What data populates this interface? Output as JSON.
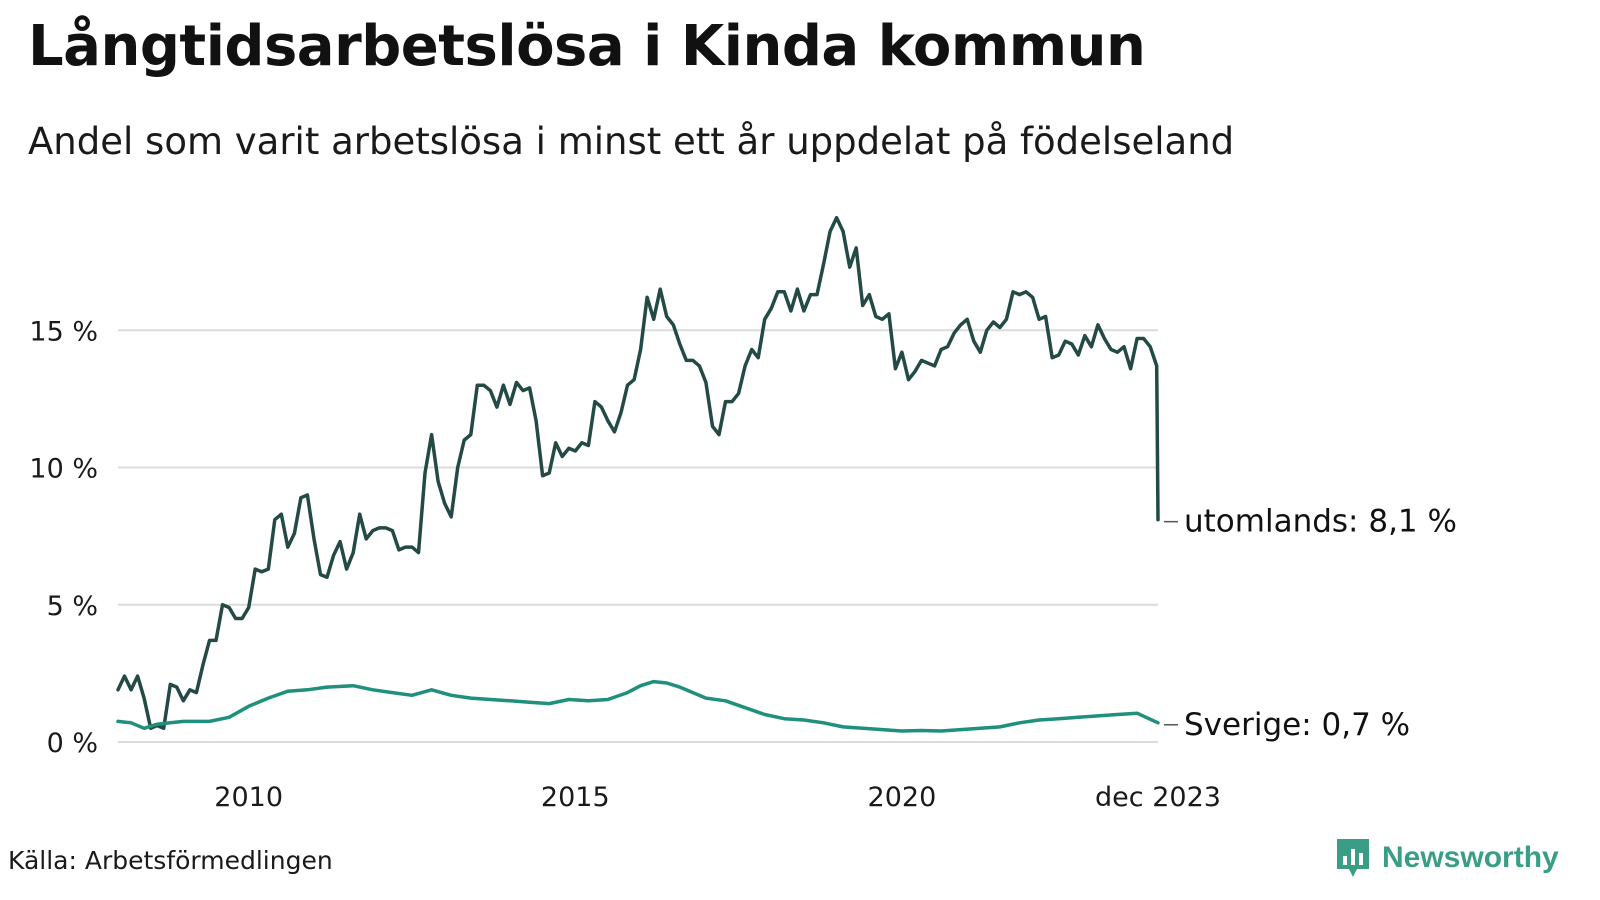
{
  "title": "Långtidsarbetslösa i Kinda kommun",
  "subtitle": "Andel som varit arbetslösa i minst ett år uppdelat på födelseland",
  "source": "Källa: Arbetsförmedlingen",
  "brand": {
    "name": "Newsworthy",
    "icon": "bar-chart-bubble-icon",
    "color": "#3a9e87"
  },
  "chart_data": {
    "type": "line",
    "title": "Långtidsarbetslösa i Kinda kommun",
    "xlabel": "",
    "ylabel": "",
    "x_range": [
      2008.0,
      2023.92
    ],
    "ylim": [
      0,
      19
    ],
    "y_ticks": [
      0,
      5,
      10,
      15
    ],
    "y_tick_labels": [
      "0 %",
      "5 %",
      "10 %",
      "15 %"
    ],
    "x_ticks": [
      2010,
      2015,
      2020,
      2023.92
    ],
    "x_tick_labels": [
      "2010",
      "2015",
      "2020",
      "dec 2023"
    ],
    "grid": true,
    "series": [
      {
        "name": "utomlands",
        "end_label": "utomlands: 8,1 %",
        "color": "#234a44",
        "points": [
          [
            2008.0,
            1.9
          ],
          [
            2008.1,
            2.4
          ],
          [
            2008.2,
            1.9
          ],
          [
            2008.3,
            2.4
          ],
          [
            2008.4,
            1.6
          ],
          [
            2008.5,
            0.5
          ],
          [
            2008.6,
            0.6
          ],
          [
            2008.7,
            0.5
          ],
          [
            2008.8,
            2.1
          ],
          [
            2008.9,
            2.0
          ],
          [
            2009.0,
            1.5
          ],
          [
            2009.1,
            1.9
          ],
          [
            2009.2,
            1.8
          ],
          [
            2009.3,
            2.8
          ],
          [
            2009.4,
            3.7
          ],
          [
            2009.5,
            3.7
          ],
          [
            2009.6,
            5.0
          ],
          [
            2009.7,
            4.9
          ],
          [
            2009.8,
            4.5
          ],
          [
            2009.9,
            4.5
          ],
          [
            2010.0,
            4.9
          ],
          [
            2010.1,
            6.3
          ],
          [
            2010.2,
            6.2
          ],
          [
            2010.3,
            6.3
          ],
          [
            2010.4,
            8.1
          ],
          [
            2010.5,
            8.3
          ],
          [
            2010.6,
            7.1
          ],
          [
            2010.7,
            7.6
          ],
          [
            2010.8,
            8.9
          ],
          [
            2010.9,
            9.0
          ],
          [
            2011.0,
            7.4
          ],
          [
            2011.1,
            6.1
          ],
          [
            2011.2,
            6.0
          ],
          [
            2011.3,
            6.8
          ],
          [
            2011.4,
            7.3
          ],
          [
            2011.5,
            6.3
          ],
          [
            2011.6,
            6.9
          ],
          [
            2011.7,
            8.3
          ],
          [
            2011.8,
            7.4
          ],
          [
            2011.9,
            7.7
          ],
          [
            2012.0,
            7.8
          ],
          [
            2012.1,
            7.8
          ],
          [
            2012.2,
            7.7
          ],
          [
            2012.3,
            7.0
          ],
          [
            2012.4,
            7.1
          ],
          [
            2012.5,
            7.1
          ],
          [
            2012.6,
            6.9
          ],
          [
            2012.7,
            9.8
          ],
          [
            2012.8,
            11.2
          ],
          [
            2012.9,
            9.5
          ],
          [
            2013.0,
            8.7
          ],
          [
            2013.1,
            8.2
          ],
          [
            2013.2,
            10.0
          ],
          [
            2013.3,
            11.0
          ],
          [
            2013.4,
            11.2
          ],
          [
            2013.5,
            13.0
          ],
          [
            2013.6,
            13.0
          ],
          [
            2013.7,
            12.8
          ],
          [
            2013.8,
            12.2
          ],
          [
            2013.9,
            13.0
          ],
          [
            2014.0,
            12.3
          ],
          [
            2014.1,
            13.1
          ],
          [
            2014.2,
            12.8
          ],
          [
            2014.3,
            12.9
          ],
          [
            2014.4,
            11.7
          ],
          [
            2014.5,
            9.7
          ],
          [
            2014.6,
            9.8
          ],
          [
            2014.7,
            10.9
          ],
          [
            2014.8,
            10.4
          ],
          [
            2014.9,
            10.7
          ],
          [
            2015.0,
            10.6
          ],
          [
            2015.1,
            10.9
          ],
          [
            2015.2,
            10.8
          ],
          [
            2015.3,
            12.4
          ],
          [
            2015.4,
            12.2
          ],
          [
            2015.5,
            11.7
          ],
          [
            2015.6,
            11.3
          ],
          [
            2015.7,
            12.0
          ],
          [
            2015.8,
            13.0
          ],
          [
            2015.9,
            13.2
          ],
          [
            2016.0,
            14.3
          ],
          [
            2016.1,
            16.2
          ],
          [
            2016.2,
            15.4
          ],
          [
            2016.3,
            16.5
          ],
          [
            2016.4,
            15.5
          ],
          [
            2016.5,
            15.2
          ],
          [
            2016.6,
            14.5
          ],
          [
            2016.7,
            13.9
          ],
          [
            2016.8,
            13.9
          ],
          [
            2016.9,
            13.7
          ],
          [
            2017.0,
            13.1
          ],
          [
            2017.1,
            11.5
          ],
          [
            2017.2,
            11.2
          ],
          [
            2017.3,
            12.4
          ],
          [
            2017.4,
            12.4
          ],
          [
            2017.5,
            12.7
          ],
          [
            2017.6,
            13.7
          ],
          [
            2017.7,
            14.3
          ],
          [
            2017.8,
            14.0
          ],
          [
            2017.9,
            15.4
          ],
          [
            2018.0,
            15.8
          ],
          [
            2018.1,
            16.4
          ],
          [
            2018.2,
            16.4
          ],
          [
            2018.3,
            15.7
          ],
          [
            2018.4,
            16.5
          ],
          [
            2018.5,
            15.7
          ],
          [
            2018.6,
            16.3
          ],
          [
            2018.7,
            16.3
          ],
          [
            2018.8,
            17.4
          ],
          [
            2018.9,
            18.6
          ],
          [
            2019.0,
            19.1
          ],
          [
            2019.1,
            18.6
          ],
          [
            2019.2,
            17.3
          ],
          [
            2019.3,
            18.0
          ],
          [
            2019.4,
            15.9
          ],
          [
            2019.5,
            16.3
          ],
          [
            2019.6,
            15.5
          ],
          [
            2019.7,
            15.4
          ],
          [
            2019.8,
            15.6
          ],
          [
            2019.9,
            13.6
          ],
          [
            2020.0,
            14.2
          ],
          [
            2020.1,
            13.2
          ],
          [
            2020.2,
            13.5
          ],
          [
            2020.3,
            13.9
          ],
          [
            2020.4,
            13.8
          ],
          [
            2020.5,
            13.7
          ],
          [
            2020.6,
            14.3
          ],
          [
            2020.7,
            14.4
          ],
          [
            2020.8,
            14.9
          ],
          [
            2020.9,
            15.2
          ],
          [
            2021.0,
            15.4
          ],
          [
            2021.1,
            14.6
          ],
          [
            2021.2,
            14.2
          ],
          [
            2021.3,
            15.0
          ],
          [
            2021.4,
            15.3
          ],
          [
            2021.5,
            15.1
          ],
          [
            2021.6,
            15.4
          ],
          [
            2021.7,
            16.4
          ],
          [
            2021.8,
            16.3
          ],
          [
            2021.9,
            16.4
          ],
          [
            2022.0,
            16.2
          ],
          [
            2022.1,
            15.4
          ],
          [
            2022.2,
            15.5
          ],
          [
            2022.3,
            14.0
          ],
          [
            2022.4,
            14.1
          ],
          [
            2022.5,
            14.6
          ],
          [
            2022.6,
            14.5
          ],
          [
            2022.7,
            14.1
          ],
          [
            2022.8,
            14.8
          ],
          [
            2022.9,
            14.4
          ],
          [
            2023.0,
            15.2
          ],
          [
            2023.1,
            14.7
          ],
          [
            2023.2,
            14.3
          ],
          [
            2023.3,
            14.2
          ],
          [
            2023.4,
            14.4
          ],
          [
            2023.5,
            13.6
          ],
          [
            2023.6,
            14.7
          ],
          [
            2023.7,
            14.7
          ],
          [
            2023.8,
            14.4
          ],
          [
            2023.9,
            13.7
          ],
          [
            2023.92,
            8.1
          ]
        ]
      },
      {
        "name": "Sverige",
        "end_label": "Sverige: 0,7 %",
        "color": "#1f8f7e",
        "points": [
          [
            2008.0,
            0.75
          ],
          [
            2008.2,
            0.7
          ],
          [
            2008.4,
            0.5
          ],
          [
            2008.6,
            0.65
          ],
          [
            2008.8,
            0.7
          ],
          [
            2009.0,
            0.75
          ],
          [
            2009.4,
            0.75
          ],
          [
            2009.7,
            0.9
          ],
          [
            2010.0,
            1.3
          ],
          [
            2010.3,
            1.6
          ],
          [
            2010.6,
            1.85
          ],
          [
            2010.9,
            1.9
          ],
          [
            2011.2,
            2.0
          ],
          [
            2011.6,
            2.05
          ],
          [
            2011.9,
            1.9
          ],
          [
            2012.2,
            1.8
          ],
          [
            2012.5,
            1.7
          ],
          [
            2012.8,
            1.9
          ],
          [
            2013.1,
            1.7
          ],
          [
            2013.4,
            1.6
          ],
          [
            2013.7,
            1.55
          ],
          [
            2014.0,
            1.5
          ],
          [
            2014.3,
            1.45
          ],
          [
            2014.6,
            1.4
          ],
          [
            2014.9,
            1.55
          ],
          [
            2015.2,
            1.5
          ],
          [
            2015.5,
            1.55
          ],
          [
            2015.8,
            1.8
          ],
          [
            2016.0,
            2.05
          ],
          [
            2016.2,
            2.2
          ],
          [
            2016.4,
            2.15
          ],
          [
            2016.6,
            2.0
          ],
          [
            2016.8,
            1.8
          ],
          [
            2017.0,
            1.6
          ],
          [
            2017.3,
            1.5
          ],
          [
            2017.6,
            1.25
          ],
          [
            2017.9,
            1.0
          ],
          [
            2018.2,
            0.85
          ],
          [
            2018.5,
            0.8
          ],
          [
            2018.8,
            0.7
          ],
          [
            2019.1,
            0.55
          ],
          [
            2019.4,
            0.5
          ],
          [
            2019.7,
            0.45
          ],
          [
            2020.0,
            0.4
          ],
          [
            2020.3,
            0.42
          ],
          [
            2020.6,
            0.4
          ],
          [
            2020.9,
            0.45
          ],
          [
            2021.2,
            0.5
          ],
          [
            2021.5,
            0.55
          ],
          [
            2021.8,
            0.7
          ],
          [
            2022.1,
            0.8
          ],
          [
            2022.4,
            0.85
          ],
          [
            2022.7,
            0.9
          ],
          [
            2023.0,
            0.95
          ],
          [
            2023.3,
            1.0
          ],
          [
            2023.6,
            1.05
          ],
          [
            2023.92,
            0.7
          ]
        ]
      }
    ]
  }
}
